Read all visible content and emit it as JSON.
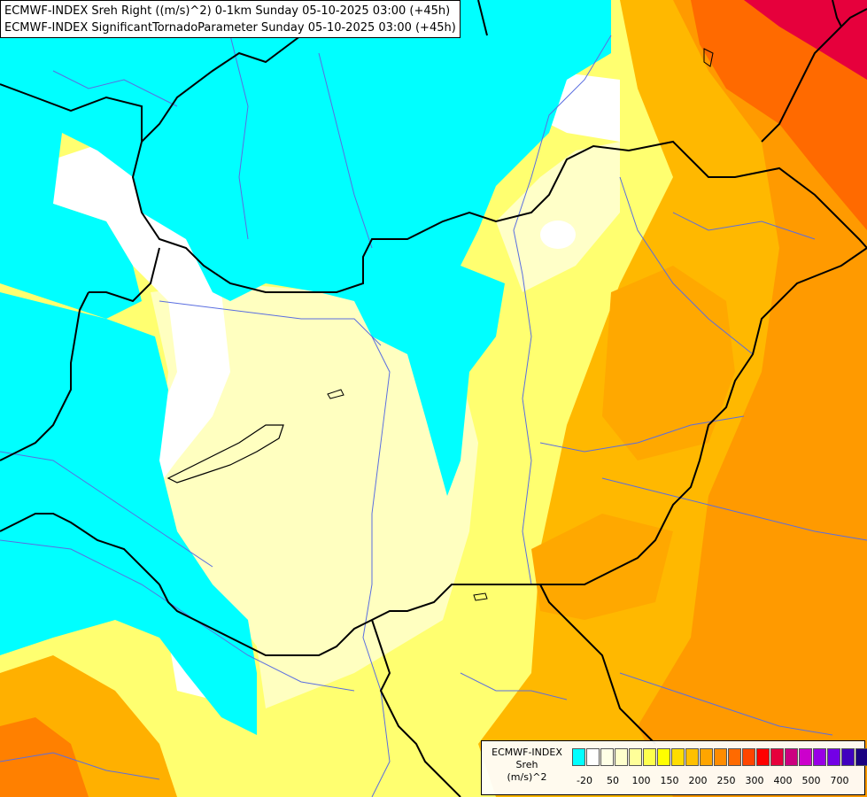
{
  "header": {
    "line1": "ECMWF-INDEX Sreh Right ((m/s)^2) 0-1km Sunday 05-10-2025 03:00 (+45h)",
    "line2": "ECMWF-INDEX SignificantTornadoParameter Sunday 05-10-2025 03:00 (+45h)"
  },
  "legend": {
    "title": "ECMWF-INDEX",
    "subtitle": "Sreh",
    "unit": "(m/s)^2",
    "colors": [
      "#00ffff",
      "#ffffff",
      "#ffffe6",
      "#ffffcc",
      "#ffff99",
      "#ffff4d",
      "#ffff00",
      "#ffdd00",
      "#ffc000",
      "#ffa500",
      "#ff8c00",
      "#ff6a00",
      "#ff4500",
      "#ff0000",
      "#e6003c",
      "#cc0080",
      "#cc00cc",
      "#9900e6",
      "#7300e6",
      "#4000bf",
      "#1a0080",
      "#00004d"
    ],
    "tick_labels": [
      "-20",
      "50",
      "100",
      "150",
      "200",
      "250",
      "300",
      "400",
      "500",
      "700"
    ]
  },
  "map": {
    "colors": {
      "negative": "#00ffff",
      "near_zero": "#ffffff",
      "pale_yellow": "#ffffc0",
      "yellow": "#ffff40",
      "gold": "#ffd700",
      "orange_light": "#ffbb00",
      "orange": "#ff9a00",
      "orange_dark": "#ff7a00",
      "red": "#ff3000",
      "crimson": "#e6003c",
      "border": "#000000",
      "river": "#5a6ee0"
    }
  }
}
